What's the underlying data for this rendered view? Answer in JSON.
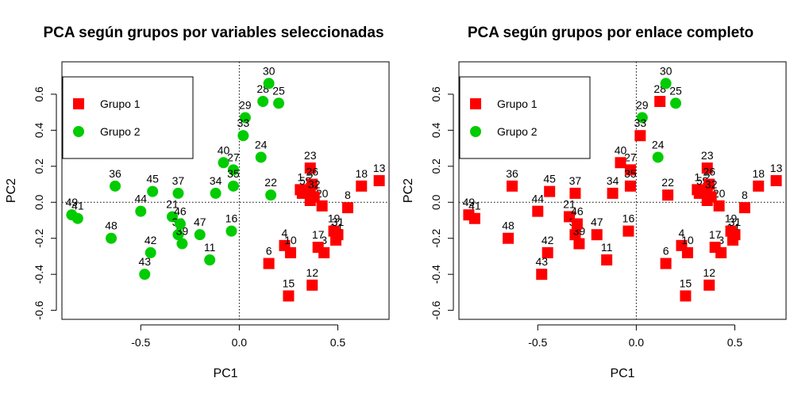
{
  "chart_data": [
    {
      "type": "scatter",
      "title": "PCA según grupos por variables seleccionadas",
      "xlabel": "PC1",
      "ylabel": "PC2",
      "xlim": [
        -0.9,
        0.76
      ],
      "ylim": [
        -0.65,
        0.78
      ],
      "x_ticks": [
        -0.5,
        0.0,
        0.5
      ],
      "x_tick_labels": [
        "-0.5",
        "0.0",
        "0.5"
      ],
      "y_ticks": [
        -0.6,
        -0.4,
        -0.2,
        0.0,
        0.2,
        0.4,
        0.6
      ],
      "y_tick_labels": [
        "-0.6",
        "-0.4",
        "-0.2",
        "0.0",
        "0.2",
        "0.4",
        "0.6"
      ],
      "reference_lines": {
        "x": 0,
        "y": 0,
        "style": "dotted"
      },
      "legend": {
        "position": "top-left",
        "entries": [
          {
            "label": "Grupo 1",
            "color": "#ff0000",
            "shape": "square"
          },
          {
            "label": "Grupo 2",
            "color": "#00cc00",
            "shape": "circle"
          }
        ]
      },
      "points": [
        {
          "id": "1",
          "x": 0.31,
          "y": 0.07,
          "group": 1
        },
        {
          "id": "2",
          "x": 0.36,
          "y": 0.07,
          "group": 1
        },
        {
          "id": "3",
          "x": 0.43,
          "y": -0.28,
          "group": 1
        },
        {
          "id": "4",
          "x": 0.23,
          "y": -0.24,
          "group": 1
        },
        {
          "id": "5",
          "x": 0.32,
          "y": 0.05,
          "group": 1
        },
        {
          "id": "6",
          "x": 0.15,
          "y": -0.34,
          "group": 1
        },
        {
          "id": "7",
          "x": 0.36,
          "y": 0.01,
          "group": 1
        },
        {
          "id": "8",
          "x": 0.55,
          "y": -0.03,
          "group": 1
        },
        {
          "id": "9",
          "x": 0.35,
          "y": 0.05,
          "group": 1
        },
        {
          "id": "10",
          "x": 0.26,
          "y": -0.28,
          "group": 1
        },
        {
          "id": "11",
          "x": -0.15,
          "y": -0.32,
          "group": 2
        },
        {
          "id": "12",
          "x": 0.37,
          "y": -0.46,
          "group": 1
        },
        {
          "id": "13",
          "x": 0.71,
          "y": 0.12,
          "group": 1
        },
        {
          "id": "14",
          "x": 0.49,
          "y": -0.21,
          "group": 1
        },
        {
          "id": "15",
          "x": 0.25,
          "y": -0.52,
          "group": 1
        },
        {
          "id": "16",
          "x": -0.04,
          "y": -0.16,
          "group": 2
        },
        {
          "id": "17",
          "x": 0.4,
          "y": -0.25,
          "group": 1
        },
        {
          "id": "18",
          "x": 0.62,
          "y": 0.09,
          "group": 1
        },
        {
          "id": "19",
          "x": 0.48,
          "y": -0.16,
          "group": 1
        },
        {
          "id": "20",
          "x": 0.42,
          "y": -0.02,
          "group": 1
        },
        {
          "id": "21",
          "x": -0.34,
          "y": -0.08,
          "group": 2
        },
        {
          "id": "22",
          "x": 0.16,
          "y": 0.04,
          "group": 2
        },
        {
          "id": "23",
          "x": 0.36,
          "y": 0.19,
          "group": 1
        },
        {
          "id": "24",
          "x": 0.11,
          "y": 0.25,
          "group": 2
        },
        {
          "id": "25",
          "x": 0.2,
          "y": 0.55,
          "group": 2
        },
        {
          "id": "26",
          "x": 0.37,
          "y": 0.1,
          "group": 1
        },
        {
          "id": "27",
          "x": -0.03,
          "y": 0.18,
          "group": 2
        },
        {
          "id": "28",
          "x": 0.12,
          "y": 0.56,
          "group": 2
        },
        {
          "id": "29",
          "x": 0.03,
          "y": 0.47,
          "group": 2
        },
        {
          "id": "30",
          "x": 0.15,
          "y": 0.66,
          "group": 2
        },
        {
          "id": "31",
          "x": 0.5,
          "y": -0.18,
          "group": 1
        },
        {
          "id": "32",
          "x": 0.38,
          "y": 0.03,
          "group": 1
        },
        {
          "id": "33",
          "x": 0.02,
          "y": 0.37,
          "group": 2
        },
        {
          "id": "34",
          "x": -0.12,
          "y": 0.05,
          "group": 2
        },
        {
          "id": "35",
          "x": -0.03,
          "y": 0.09,
          "group": 2
        },
        {
          "id": "36",
          "x": -0.63,
          "y": 0.09,
          "group": 2
        },
        {
          "id": "37",
          "x": -0.31,
          "y": 0.05,
          "group": 2
        },
        {
          "id": "38",
          "x": -0.31,
          "y": -0.18,
          "group": 2
        },
        {
          "id": "39",
          "x": -0.29,
          "y": -0.23,
          "group": 2
        },
        {
          "id": "40",
          "x": -0.08,
          "y": 0.22,
          "group": 2
        },
        {
          "id": "41",
          "x": -0.82,
          "y": -0.09,
          "group": 2
        },
        {
          "id": "42",
          "x": -0.45,
          "y": -0.28,
          "group": 2
        },
        {
          "id": "43",
          "x": -0.48,
          "y": -0.4,
          "group": 2
        },
        {
          "id": "44",
          "x": -0.5,
          "y": -0.05,
          "group": 2
        },
        {
          "id": "45",
          "x": -0.44,
          "y": 0.06,
          "group": 2
        },
        {
          "id": "46",
          "x": -0.3,
          "y": -0.12,
          "group": 2
        },
        {
          "id": "47",
          "x": -0.2,
          "y": -0.18,
          "group": 2
        },
        {
          "id": "48",
          "x": -0.65,
          "y": -0.2,
          "group": 2
        },
        {
          "id": "49",
          "x": -0.85,
          "y": -0.07,
          "group": 2
        }
      ]
    },
    {
      "type": "scatter",
      "title": "PCA según grupos por enlace completo",
      "xlabel": "PC1",
      "ylabel": "PC2",
      "xlim": [
        -0.9,
        0.76
      ],
      "ylim": [
        -0.65,
        0.78
      ],
      "x_ticks": [
        -0.5,
        0.0,
        0.5
      ],
      "x_tick_labels": [
        "-0.5",
        "0.0",
        "0.5"
      ],
      "y_ticks": [
        -0.6,
        -0.4,
        -0.2,
        0.0,
        0.2,
        0.4,
        0.6
      ],
      "y_tick_labels": [
        "-0.6",
        "-0.4",
        "-0.2",
        "0.0",
        "0.2",
        "0.4",
        "0.6"
      ],
      "reference_lines": {
        "x": 0,
        "y": 0,
        "style": "dotted"
      },
      "legend": {
        "position": "top-left",
        "entries": [
          {
            "label": "Grupo 1",
            "color": "#ff0000",
            "shape": "square"
          },
          {
            "label": "Grupo 2",
            "color": "#00cc00",
            "shape": "circle"
          }
        ]
      },
      "points": [
        {
          "id": "1",
          "x": 0.31,
          "y": 0.07,
          "group": 1
        },
        {
          "id": "2",
          "x": 0.36,
          "y": 0.07,
          "group": 1
        },
        {
          "id": "3",
          "x": 0.43,
          "y": -0.28,
          "group": 1
        },
        {
          "id": "4",
          "x": 0.23,
          "y": -0.24,
          "group": 1
        },
        {
          "id": "5",
          "x": 0.32,
          "y": 0.05,
          "group": 1
        },
        {
          "id": "6",
          "x": 0.15,
          "y": -0.34,
          "group": 1
        },
        {
          "id": "7",
          "x": 0.36,
          "y": 0.01,
          "group": 1
        },
        {
          "id": "8",
          "x": 0.55,
          "y": -0.03,
          "group": 1
        },
        {
          "id": "9",
          "x": 0.35,
          "y": 0.05,
          "group": 1
        },
        {
          "id": "10",
          "x": 0.26,
          "y": -0.28,
          "group": 1
        },
        {
          "id": "11",
          "x": -0.15,
          "y": -0.32,
          "group": 1
        },
        {
          "id": "12",
          "x": 0.37,
          "y": -0.46,
          "group": 1
        },
        {
          "id": "13",
          "x": 0.71,
          "y": 0.12,
          "group": 1
        },
        {
          "id": "14",
          "x": 0.49,
          "y": -0.21,
          "group": 1
        },
        {
          "id": "15",
          "x": 0.25,
          "y": -0.52,
          "group": 1
        },
        {
          "id": "16",
          "x": -0.04,
          "y": -0.16,
          "group": 1
        },
        {
          "id": "17",
          "x": 0.4,
          "y": -0.25,
          "group": 1
        },
        {
          "id": "18",
          "x": 0.62,
          "y": 0.09,
          "group": 1
        },
        {
          "id": "19",
          "x": 0.48,
          "y": -0.16,
          "group": 1
        },
        {
          "id": "20",
          "x": 0.42,
          "y": -0.02,
          "group": 1
        },
        {
          "id": "21",
          "x": -0.34,
          "y": -0.08,
          "group": 1
        },
        {
          "id": "22",
          "x": 0.16,
          "y": 0.04,
          "group": 1
        },
        {
          "id": "23",
          "x": 0.36,
          "y": 0.19,
          "group": 1
        },
        {
          "id": "24",
          "x": 0.11,
          "y": 0.25,
          "group": 2
        },
        {
          "id": "25",
          "x": 0.2,
          "y": 0.55,
          "group": 2
        },
        {
          "id": "26",
          "x": 0.37,
          "y": 0.1,
          "group": 1
        },
        {
          "id": "27",
          "x": -0.03,
          "y": 0.18,
          "group": 1
        },
        {
          "id": "28",
          "x": 0.12,
          "y": 0.56,
          "group": 1
        },
        {
          "id": "29",
          "x": 0.03,
          "y": 0.47,
          "group": 2
        },
        {
          "id": "30",
          "x": 0.15,
          "y": 0.66,
          "group": 2
        },
        {
          "id": "31",
          "x": 0.5,
          "y": -0.18,
          "group": 1
        },
        {
          "id": "32",
          "x": 0.38,
          "y": 0.03,
          "group": 1
        },
        {
          "id": "33",
          "x": 0.02,
          "y": 0.37,
          "group": 1
        },
        {
          "id": "34",
          "x": -0.12,
          "y": 0.05,
          "group": 1
        },
        {
          "id": "35",
          "x": -0.03,
          "y": 0.09,
          "group": 1
        },
        {
          "id": "36",
          "x": -0.63,
          "y": 0.09,
          "group": 1
        },
        {
          "id": "37",
          "x": -0.31,
          "y": 0.05,
          "group": 1
        },
        {
          "id": "38",
          "x": -0.31,
          "y": -0.18,
          "group": 1
        },
        {
          "id": "39",
          "x": -0.29,
          "y": -0.23,
          "group": 1
        },
        {
          "id": "40",
          "x": -0.08,
          "y": 0.22,
          "group": 1
        },
        {
          "id": "41",
          "x": -0.82,
          "y": -0.09,
          "group": 1
        },
        {
          "id": "42",
          "x": -0.45,
          "y": -0.28,
          "group": 1
        },
        {
          "id": "43",
          "x": -0.48,
          "y": -0.4,
          "group": 1
        },
        {
          "id": "44",
          "x": -0.5,
          "y": -0.05,
          "group": 1
        },
        {
          "id": "45",
          "x": -0.44,
          "y": 0.06,
          "group": 1
        },
        {
          "id": "46",
          "x": -0.3,
          "y": -0.12,
          "group": 1
        },
        {
          "id": "47",
          "x": -0.2,
          "y": -0.18,
          "group": 1
        },
        {
          "id": "48",
          "x": -0.65,
          "y": -0.2,
          "group": 1
        },
        {
          "id": "49",
          "x": -0.85,
          "y": -0.07,
          "group": 1
        }
      ]
    }
  ]
}
